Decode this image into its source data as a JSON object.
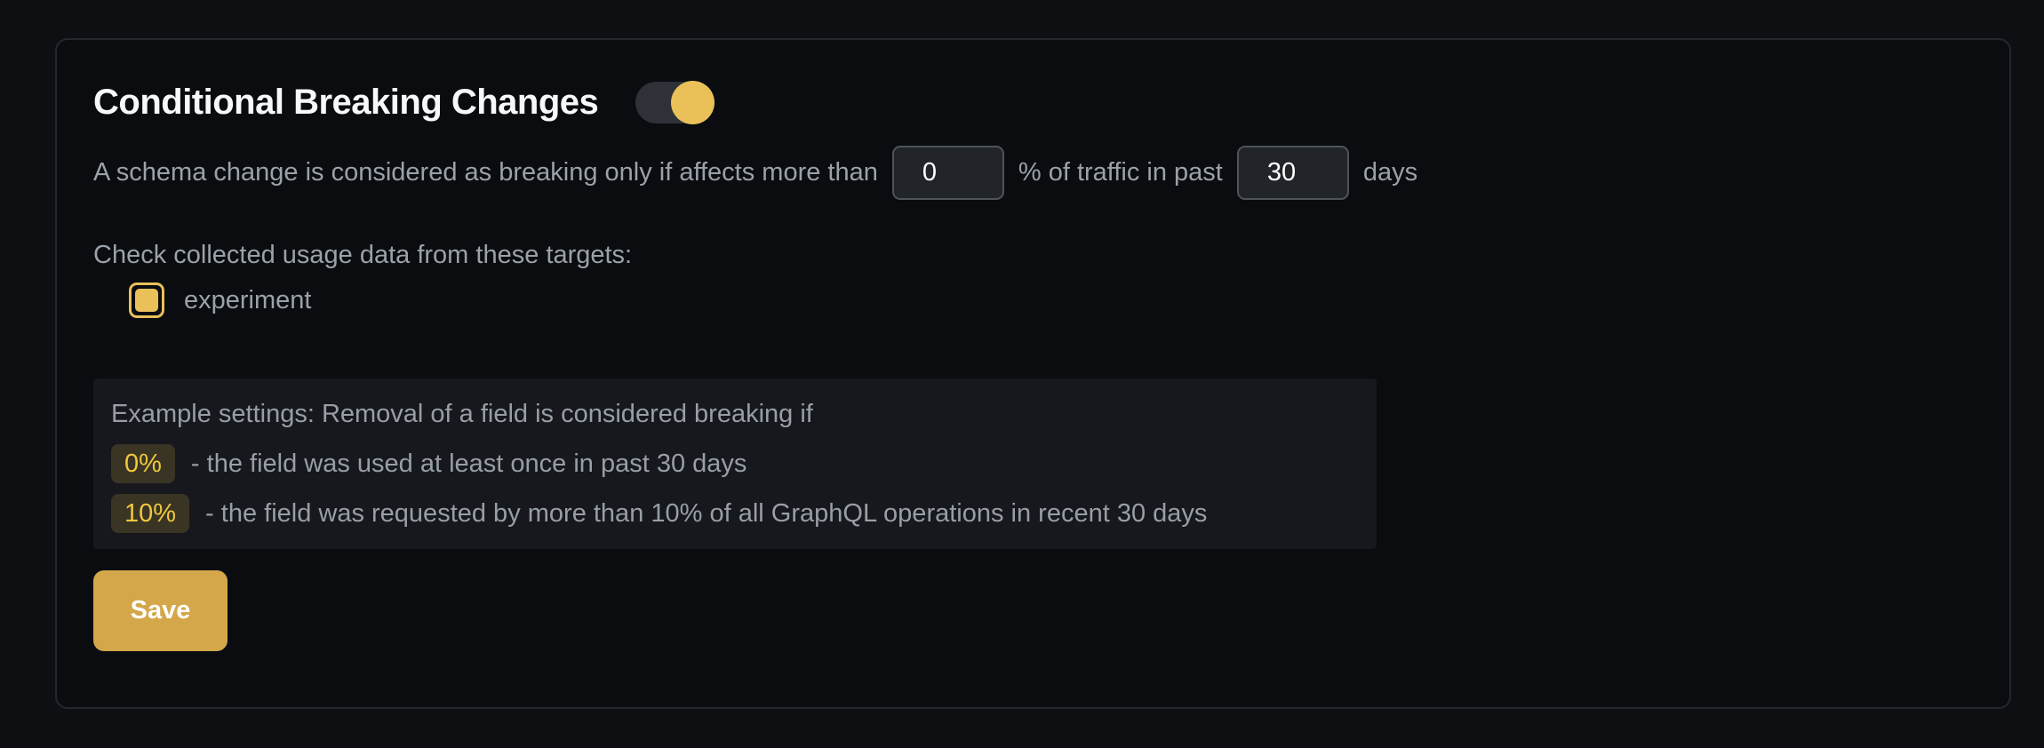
{
  "panel": {
    "title": "Conditional Breaking Changes",
    "toggle": {
      "state": "on"
    },
    "sentence": {
      "part1": "A schema change is considered as breaking only if affects more than",
      "percent_value": "0",
      "part2": "% of traffic in past",
      "days_value": "30",
      "part3": "days"
    },
    "targets": {
      "label": "Check collected usage data from these targets:",
      "items": [
        {
          "name": "experiment",
          "checked": true
        }
      ]
    },
    "example": {
      "intro": "Example settings: Removal of a field is considered breaking if",
      "rows": [
        {
          "badge": "0%",
          "text": "- the field was used at least once in past 30 days"
        },
        {
          "badge": "10%",
          "text": "- the field was requested by more than 10% of all GraphQL operations in recent 30 days"
        }
      ]
    },
    "save_label": "Save"
  },
  "colors": {
    "page_background": "#0d0f13",
    "card_background": "#0a0c10",
    "card_border": "#24272d",
    "muted_text": "#9aa1a9",
    "title_text": "#f7f8f9",
    "accent_amber": "#eac159",
    "toggle_track": "#2e3138",
    "input_background": "#212429",
    "input_border": "#4e535b",
    "example_box_background": "#16181d",
    "badge_background": "#3a3424",
    "badge_text": "#efc73e",
    "save_button_background": "#d4a74a"
  }
}
